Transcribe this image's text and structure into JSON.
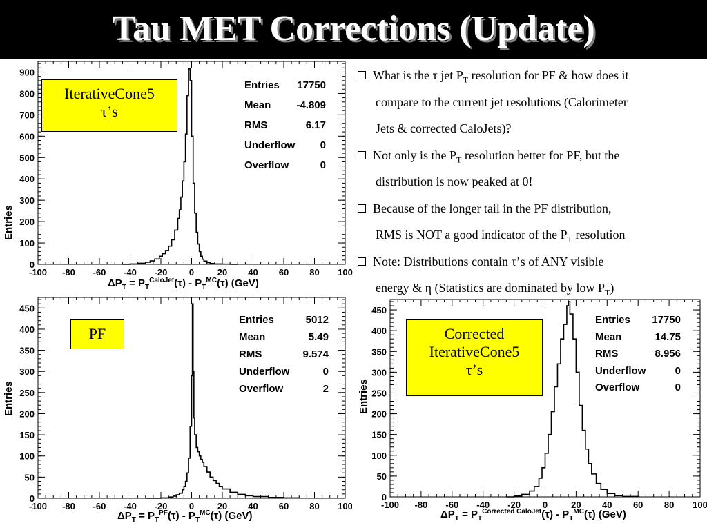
{
  "slide": {
    "title": "Tau MET Corrections (Update)"
  },
  "bullets": [
    {
      "lines": [
        "What is the τ jet P_T resolution for PF & how does it",
        "compare to the current jet resolutions (Calorimeter",
        "Jets & corrected CaloJets)?"
      ]
    },
    {
      "lines": [
        "Not only is the P_T resolution better for PF, but the",
        "distribution is now peaked at 0!"
      ]
    },
    {
      "lines": [
        "Because of the longer tail in the PF distribution,",
        "RMS is NOT a good indicator of the P_T resolution"
      ]
    },
    {
      "lines": [
        "Note: Distributions contain τ’s of ANY visible",
        "energy & η (Statistics are dominated by low P_T)"
      ]
    }
  ],
  "plots": [
    {
      "tag": [
        "IterativeCone5",
        "τ’s"
      ],
      "stats": [
        {
          "label": "Entries",
          "value": "17750"
        },
        {
          "label": "Mean",
          "value": "-4.809"
        },
        {
          "label": "RMS",
          "value": "6.17"
        },
        {
          "label": "Underflow",
          "value": "0"
        },
        {
          "label": "Overflow",
          "value": "0"
        }
      ],
      "ylabel": "Entries",
      "xlabel": {
        "prefix": "ΔP",
        "sub1": "T",
        "eq": " = P",
        "sup2": "CaloJet",
        "sub2": "T",
        "mid": "(τ) - P",
        "sup3": "MC",
        "sub3": "T",
        "end": "(τ)  (GeV)"
      }
    },
    {
      "tag": [
        "PF"
      ],
      "stats": [
        {
          "label": "Entries",
          "value": "5012"
        },
        {
          "label": "Mean",
          "value": "5.49"
        },
        {
          "label": "RMS",
          "value": "9.574"
        },
        {
          "label": "Underflow",
          "value": "0"
        },
        {
          "label": "Overflow",
          "value": "2"
        }
      ],
      "ylabel": "Entries",
      "xlabel": {
        "prefix": "ΔP",
        "sub1": "T",
        "eq": " = P",
        "sup2": "PF",
        "sub2": "T",
        "mid": "(τ) - P",
        "sup3": "MC",
        "sub3": "T",
        "end": "(τ)  (GeV)"
      }
    },
    {
      "tag": [
        "Corrected",
        "IterativeCone5",
        "τ’s"
      ],
      "stats": [
        {
          "label": "Entries",
          "value": "17750"
        },
        {
          "label": "Mean",
          "value": "14.75"
        },
        {
          "label": "RMS",
          "value": "8.956"
        },
        {
          "label": "Underflow",
          "value": "0"
        },
        {
          "label": "Overflow",
          "value": "0"
        }
      ],
      "ylabel": "Entries",
      "xlabel": {
        "prefix": "ΔP",
        "sub1": "T",
        "eq": " = P",
        "sup2": "Corrected CaloJet",
        "sub2": "T",
        "mid": "(τ) - P",
        "sup3": "MC",
        "sub3": "T",
        "end": "(τ)  (GeV)"
      }
    }
  ],
  "chart_data": [
    {
      "type": "area",
      "xlim": [
        -100,
        100
      ],
      "ylim": [
        0,
        950
      ],
      "xticks": [
        "-100",
        "-80",
        "-60",
        "-40",
        "-20",
        "0",
        "20",
        "40",
        "60",
        "80",
        "100"
      ],
      "yticks": [
        "0",
        "100",
        "200",
        "300",
        "400",
        "500",
        "600",
        "700",
        "800",
        "900"
      ],
      "ytick_values": [
        0,
        100,
        200,
        300,
        400,
        500,
        600,
        700,
        800,
        900
      ],
      "x": [
        -45,
        -40,
        -35,
        -30,
        -27,
        -24,
        -21,
        -19,
        -17,
        -15,
        -13,
        -11,
        -9,
        -8,
        -7,
        -6,
        -5,
        -4,
        -3,
        -2,
        -1,
        0,
        1,
        2,
        3,
        4,
        5,
        6,
        7,
        8,
        10,
        12,
        15,
        20,
        25,
        30
      ],
      "values": [
        0,
        2,
        5,
        10,
        16,
        25,
        38,
        50,
        65,
        85,
        115,
        160,
        215,
        255,
        315,
        390,
        480,
        610,
        790,
        915,
        860,
        600,
        380,
        240,
        150,
        95,
        60,
        38,
        24,
        15,
        8,
        4,
        2,
        1,
        0,
        0
      ]
    },
    {
      "type": "area",
      "xlim": [
        -100,
        100
      ],
      "ylim": [
        0,
        475
      ],
      "xticks": [
        "-100",
        "-80",
        "-60",
        "-40",
        "-20",
        "0",
        "20",
        "40",
        "60",
        "80",
        "100"
      ],
      "yticks": [
        "0",
        "50",
        "100",
        "150",
        "200",
        "250",
        "300",
        "350",
        "400",
        "450"
      ],
      "ytick_values": [
        0,
        50,
        100,
        150,
        200,
        250,
        300,
        350,
        400,
        450
      ],
      "x": [
        -30,
        -20,
        -15,
        -12,
        -10,
        -8,
        -6,
        -5,
        -4,
        -3,
        -2,
        -1,
        0,
        0.5,
        1,
        1.5,
        2,
        3,
        4,
        5,
        6,
        7,
        8,
        10,
        12,
        14,
        16,
        18,
        20,
        25,
        30,
        35,
        40,
        50,
        60,
        70
      ],
      "values": [
        0,
        1,
        3,
        5,
        8,
        12,
        20,
        28,
        40,
        60,
        95,
        170,
        290,
        460,
        300,
        190,
        150,
        120,
        110,
        100,
        92,
        85,
        75,
        62,
        50,
        42,
        35,
        28,
        22,
        14,
        9,
        6,
        4,
        2,
        1,
        0
      ]
    },
    {
      "type": "area",
      "xlim": [
        -100,
        100
      ],
      "ylim": [
        0,
        475
      ],
      "xticks": [
        "-100",
        "-80",
        "-60",
        "-40",
        "-20",
        "0",
        "20",
        "40",
        "60",
        "80",
        "100"
      ],
      "yticks": [
        "0",
        "50",
        "100",
        "150",
        "200",
        "250",
        "300",
        "350",
        "400",
        "450"
      ],
      "ytick_values": [
        0,
        50,
        100,
        150,
        200,
        250,
        300,
        350,
        400,
        450
      ],
      "x": [
        -25,
        -20,
        -15,
        -10,
        -7,
        -4,
        -2,
        0,
        2,
        4,
        6,
        8,
        10,
        12,
        14,
        15,
        16,
        18,
        20,
        22,
        24,
        26,
        28,
        30,
        33,
        36,
        40,
        45,
        50,
        60
      ],
      "values": [
        0,
        2,
        6,
        14,
        25,
        45,
        70,
        105,
        150,
        205,
        265,
        320,
        380,
        415,
        460,
        470,
        440,
        380,
        300,
        220,
        160,
        115,
        80,
        55,
        32,
        18,
        8,
        3,
        1,
        0
      ]
    }
  ]
}
